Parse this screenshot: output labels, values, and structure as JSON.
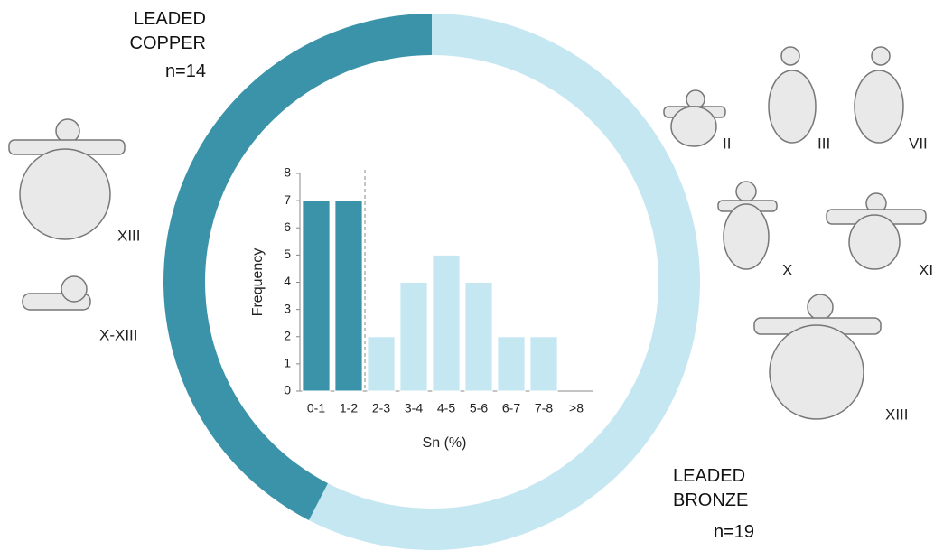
{
  "chart_data": [
    {
      "type": "donut",
      "categories": [
        "LEADED COPPER",
        "LEADED BRONZE"
      ],
      "values": [
        14,
        19
      ],
      "value_labels": [
        "n=14",
        "n=19"
      ],
      "colors": [
        "#3a93a8",
        "#c5e7f2"
      ]
    },
    {
      "type": "bar",
      "x_label": "Sn (%)",
      "y_label": "Frequency",
      "categories": [
        "0-1",
        "1-2",
        "2-3",
        "3-4",
        "4-5",
        "5-6",
        "6-7",
        "7-8",
        ">8"
      ],
      "values": [
        7,
        7,
        2,
        4,
        5,
        4,
        2,
        2,
        0
      ],
      "colors": [
        "#3a93a8",
        "#3a93a8",
        "#c5e7f2",
        "#c5e7f2",
        "#c5e7f2",
        "#c5e7f2",
        "#c5e7f2",
        "#c5e7f2",
        "#c5e7f2"
      ],
      "ylim": [
        0,
        8
      ],
      "yticks": [
        0,
        1,
        2,
        3,
        4,
        5,
        6,
        7,
        8
      ]
    }
  ],
  "image_labels": [
    "XIII",
    "X-XIII",
    "II",
    "III",
    "VII",
    "X",
    "XI",
    "XIII"
  ]
}
